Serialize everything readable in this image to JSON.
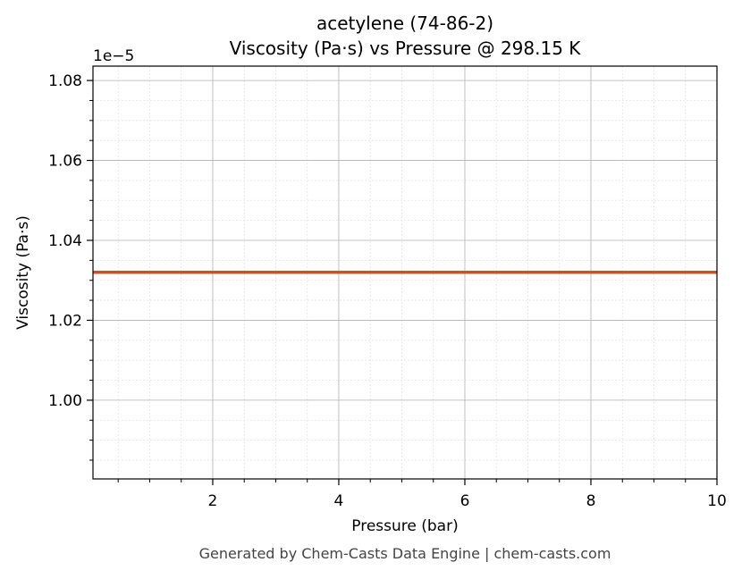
{
  "chart_data": {
    "type": "line",
    "title": "acetylene (74-86-2)",
    "subtitle": "Viscosity (Pa·s) vs Pressure @ 298.15 K",
    "x_label": "Pressure (bar)",
    "y_label": "Viscosity (Pa·s)",
    "y_offset_label": "1e−5",
    "footer": "Generated by Chem-Casts Data Engine | chem-casts.com",
    "x": [
      0.1,
      10
    ],
    "series": [
      {
        "name": "Viscosity",
        "color": "#c8522a",
        "values": [
          1.032,
          1.032
        ]
      }
    ],
    "xlim": [
      0.1,
      10
    ],
    "ylim": [
      0.9803,
      1.0836
    ],
    "xticks": [
      2,
      4,
      6,
      8,
      10
    ],
    "yticks": [
      {
        "value": 1,
        "label": "1.00"
      },
      1.02,
      1.04,
      1.06,
      1.08
    ],
    "xminorticks": [
      0.5,
      1,
      1.5,
      2.5,
      3,
      3.5,
      4.5,
      5,
      5.5,
      6.5,
      7,
      7.5,
      8.5,
      9,
      9.5
    ],
    "yminorticks": [
      0.985,
      0.99,
      0.995,
      1.005,
      1.01,
      1.015,
      1.025,
      1.03,
      1.035,
      1.045,
      1.05,
      1.055,
      1.065,
      1.07,
      1.075
    ],
    "grid": true
  }
}
